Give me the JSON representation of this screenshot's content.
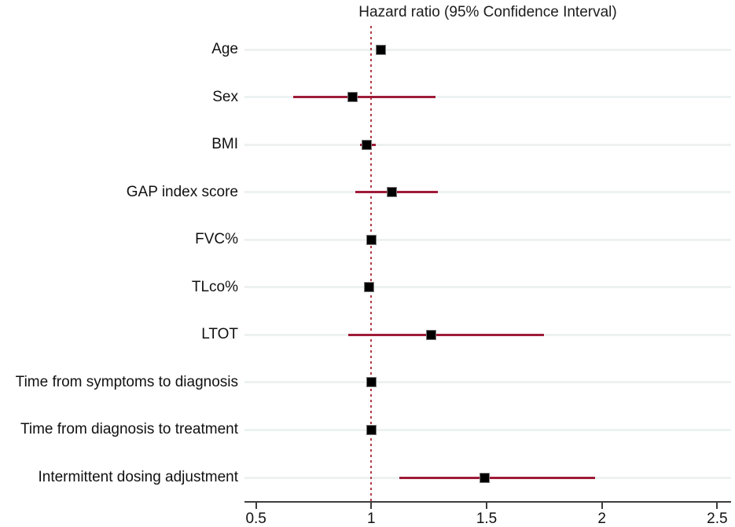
{
  "title": "Hazard ratio (95% Confidence Interval)",
  "colors": {
    "ci_line": "#9e1b38",
    "marker": "#000000",
    "reference_line": "#b23b46",
    "gridline": "#edf2f1",
    "axis": "#3d3d3d",
    "text": "#111111"
  },
  "chart_data": {
    "type": "forest",
    "title": "Hazard ratio (95% Confidence Interval)",
    "xlabel": "",
    "ylabel": "",
    "xlim": [
      0.45,
      2.56
    ],
    "reference_value": 1,
    "grid": "horizontal",
    "x_ticks": [
      {
        "value": 0.5,
        "label": "0.5"
      },
      {
        "value": 1,
        "label": "1"
      },
      {
        "value": 1.5,
        "label": "1.5"
      },
      {
        "value": 2,
        "label": "2"
      },
      {
        "value": 2.5,
        "label": "2.5"
      }
    ],
    "rows": [
      {
        "label": "Age",
        "hr": 1.04,
        "ci_low": 1.02,
        "ci_high": 1.06
      },
      {
        "label": "Sex",
        "hr": 0.92,
        "ci_low": 0.66,
        "ci_high": 1.28
      },
      {
        "label": "BMI",
        "hr": 0.98,
        "ci_low": 0.95,
        "ci_high": 1.02
      },
      {
        "label": "GAP index score",
        "hr": 1.09,
        "ci_low": 0.93,
        "ci_high": 1.29
      },
      {
        "label": "FVC%",
        "hr": 1.0,
        "ci_low": 0.99,
        "ci_high": 1.01
      },
      {
        "label": "TLco%",
        "hr": 0.99,
        "ci_low": 0.97,
        "ci_high": 1.01
      },
      {
        "label": "LTOT",
        "hr": 1.26,
        "ci_low": 0.9,
        "ci_high": 1.75
      },
      {
        "label": "Time from symptoms to diagnosis",
        "hr": 1.0,
        "ci_low": 1.0,
        "ci_high": 1.0
      },
      {
        "label": "Time from diagnosis to treatment",
        "hr": 1.0,
        "ci_low": 0.99,
        "ci_high": 1.0
      },
      {
        "label": "Intermittent dosing adjustment",
        "hr": 1.49,
        "ci_low": 1.12,
        "ci_high": 1.97
      }
    ]
  }
}
